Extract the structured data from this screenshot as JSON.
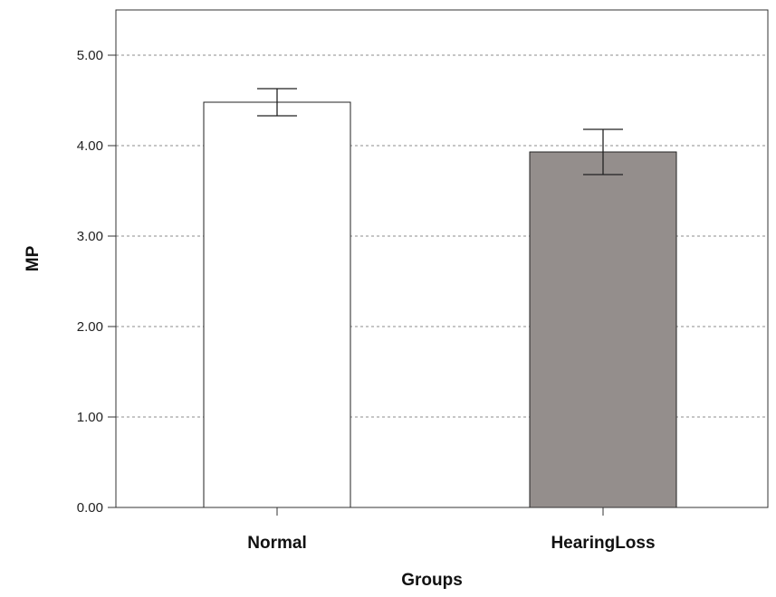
{
  "chart_data": {
    "type": "bar",
    "title": "",
    "xlabel": "Groups",
    "ylabel": "MP",
    "categories": [
      "Normal",
      "HearingLoss"
    ],
    "values": [
      4.48,
      3.93
    ],
    "error_low": [
      4.33,
      3.68
    ],
    "error_high": [
      4.63,
      4.18
    ],
    "bar_colors": [
      "#ffffff",
      "#948e8c"
    ],
    "ylim": [
      0,
      5.5
    ],
    "yticks": [
      0,
      1,
      2,
      3,
      4,
      5
    ],
    "ytick_labels": [
      "0.00",
      "1.00",
      "2.00",
      "3.00",
      "4.00",
      "5.00"
    ],
    "grid": true,
    "legend": "none"
  }
}
